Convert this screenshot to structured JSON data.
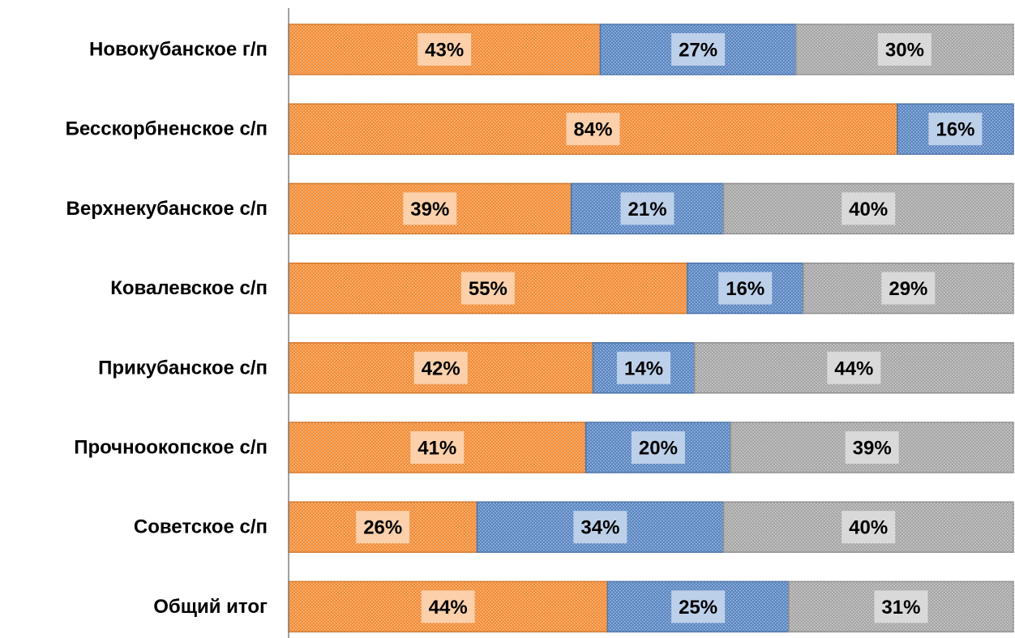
{
  "chart_data": {
    "type": "bar",
    "orientation": "horizontal",
    "stacked": "percent",
    "categories": [
      "Новокубанское г/п",
      "Бесскорбненское с/п",
      "Верхнекубанское с/п",
      "Ковалевское с/п",
      "Прикубанское с/п",
      "Прочноокопское с/п",
      "Советское с/п",
      "Общий итог"
    ],
    "series": [
      {
        "values": [
          43,
          84,
          39,
          55,
          42,
          41,
          26,
          44
        ],
        "color": "#F28C36",
        "label_bg": "#FBD0AA",
        "pattern": "dots"
      },
      {
        "values": [
          27,
          16,
          21,
          16,
          14,
          20,
          34,
          25
        ],
        "color": "#5A86C2",
        "label_bg": "#BDD0EA",
        "pattern": "dots"
      },
      {
        "values": [
          30,
          0,
          40,
          29,
          44,
          39,
          40,
          31
        ],
        "color": "#A6A6A6",
        "label_bg": "#D9D9D9",
        "pattern": "dots"
      }
    ],
    "data_labels": [
      [
        "43%",
        "27%",
        "30%"
      ],
      [
        "84%",
        "16%",
        ""
      ],
      [
        "39%",
        "21%",
        "40%"
      ],
      [
        "55%",
        "16%",
        "29%"
      ],
      [
        "42%",
        "14%",
        "44%"
      ],
      [
        "41%",
        "20%",
        "39%"
      ],
      [
        "26%",
        "34%",
        "40%"
      ],
      [
        "44%",
        "25%",
        "31%"
      ]
    ],
    "xlim": [
      0,
      100
    ],
    "title": "",
    "xlabel": "",
    "ylabel": "",
    "grid": false,
    "legend": "none"
  }
}
